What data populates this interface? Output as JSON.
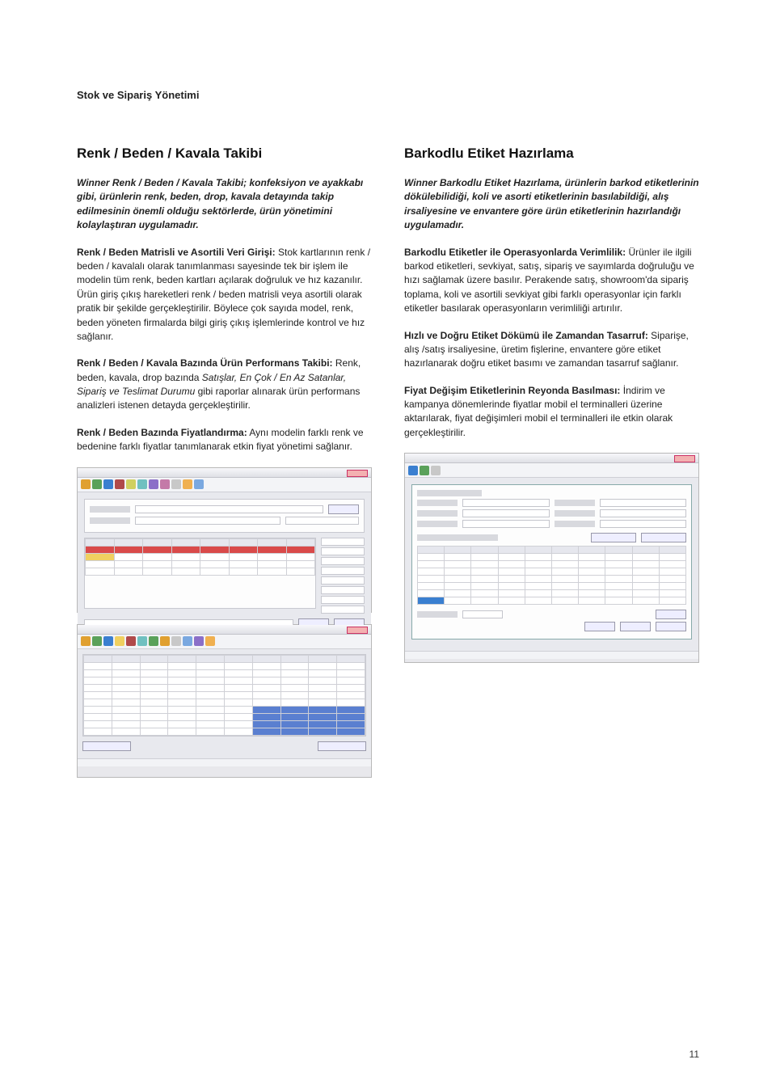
{
  "header": "Stok ve Sipariş Yönetimi",
  "page_number": "11",
  "left": {
    "title": "Renk / Beden / Kavala Takibi",
    "intro": "Winner Renk / Beden / Kavala Takibi; konfeksiyon ve ayakkabı gibi, ürünlerin renk, beden, drop, kavala detayında takip edilmesinin önemli olduğu sektörlerde, ürün yönetimini kolaylaştıran uygulamadır.",
    "p1_lead": "Renk / Beden Matrisli ve Asortili Veri Girişi:",
    "p1_body": " Stok kartlarının renk / beden / kavalalı olarak tanımlanması sayesinde tek bir işlem ile modelin tüm renk, beden kartları açılarak doğruluk ve hız kazanılır. Ürün giriş çıkış hareketleri renk / beden matrisli veya asortili olarak pratik bir şekilde gerçekleştirilir. Böylece çok sayıda model, renk, beden yöneten firmalarda bilgi giriş çıkış işlemlerinde kontrol ve hız sağlanır.",
    "p2_lead": "Renk / Beden / Kavala Bazında Ürün Performans Takibi:",
    "p2_body1": " Renk, beden, kavala, drop bazında ",
    "p2_ital": "Satışlar, En Çok / En Az Satanlar, Sipariş ve Teslimat Durumu",
    "p2_body2": " gibi raporlar alınarak ürün performans analizleri istenen detayda gerçekleştirilir.",
    "p3_lead": "Renk / Beden Bazında Fiyatlandırma:",
    "p3_body": " Aynı modelin farklı renk ve bedenine farklı fiyatlar tanımlanarak etkin fiyat yönetimi sağlanır."
  },
  "right": {
    "title": "Barkodlu Etiket Hazırlama",
    "intro": "Winner Barkodlu Etiket Hazırlama, ürünlerin barkod etiketlerinin dökülebilidiği, koli ve asorti etiketlerinin basılabildiği, alış irsaliyesine ve envantere göre ürün etiketlerinin hazırlandığı uygulamadır.",
    "p1_lead": "Barkodlu Etiketler ile Operasyonlarda Verimlilik:",
    "p1_body": " Ürünler ile ilgili barkod etiketleri, sevkiyat, satış, sipariş ve sayımlarda doğruluğu ve hızı sağlamak üzere basılır. Perakende satış, showroom'da sipariş toplama, koli ve asortili sevkiyat gibi farklı operasyonlar için farklı etiketler basılarak operasyonların verimliliği artırılır.",
    "p2_lead": "Hızlı ve Doğru Etiket Dökümü ile Zamandan Tasarruf:",
    "p2_body": " Siparişe, alış /satış irsaliyesine, üretim fişlerine, envantere göre etiket hazırlanarak doğru etiket basımı ve zamandan tasarruf sağlanır.",
    "p3_lead": "Fiyat Değişim Etiketlerinin Reyonda Basılması:",
    "p3_body": " İndirim ve kampanya dönemlerinde fiyatlar mobil el terminalleri üzerine aktarılarak, fiyat değişimleri mobil el terminalleri ile etkin olarak gerçekleştirilir."
  },
  "toolbar_colors_a": [
    "#e0a030",
    "#5aa15a",
    "#3a7fd0",
    "#b04a4a",
    "#d0d060",
    "#70c0c0",
    "#8b6fc8",
    "#c47aa8",
    "#c8c8c8",
    "#f0b050",
    "#7aa8e0"
  ],
  "toolbar_colors_b": [
    "#e0a030",
    "#5aa15a",
    "#3a7fd0",
    "#f0d060",
    "#b04a4a",
    "#70c0c0",
    "#5aa15a",
    "#e0a030",
    "#c8c8c8",
    "#7aa8e0",
    "#8b6fc8",
    "#f0b050"
  ],
  "toolbar_colors_c": [
    "#3a7fd0",
    "#5aa15a",
    "#c8c8c8"
  ]
}
